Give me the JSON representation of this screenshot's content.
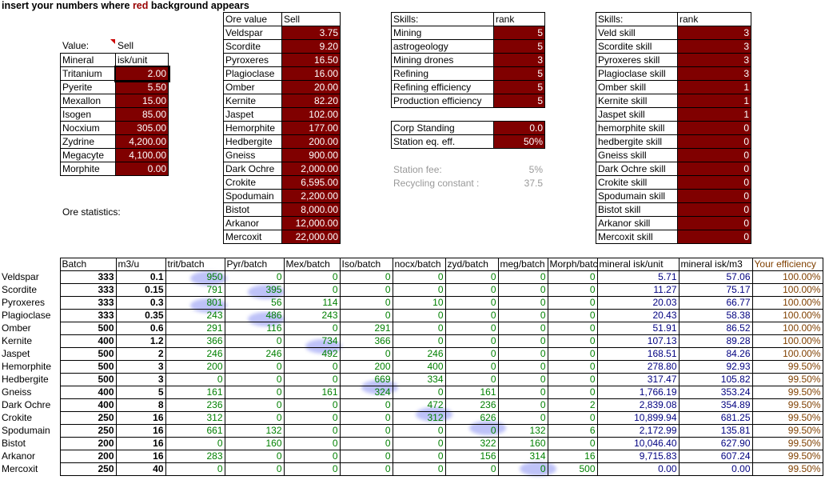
{
  "instruction": {
    "prefix": "insert your numbers where ",
    "red_word": "red",
    "suffix": " background appears"
  },
  "mineral_table": {
    "header_value": "Value:",
    "header_sell": "Sell",
    "col_mineral": "Mineral",
    "col_isk": "isk/unit",
    "rows": [
      {
        "name": "Tritanium",
        "value": "2.00"
      },
      {
        "name": "Pyerite",
        "value": "5.50"
      },
      {
        "name": "Mexallon",
        "value": "15.00"
      },
      {
        "name": "Isogen",
        "value": "85.00"
      },
      {
        "name": "Nocxium",
        "value": "305.00"
      },
      {
        "name": "Zydrine",
        "value": "4,200.00"
      },
      {
        "name": "Megacyte",
        "value": "4,100.00"
      },
      {
        "name": "Morphite",
        "value": "0.00"
      }
    ]
  },
  "ore_stats_label": "Ore statistics:",
  "ore_value_table": {
    "col_ore": "Ore value",
    "col_sell": "Sell",
    "rows": [
      {
        "name": "Veldspar",
        "value": "3.75"
      },
      {
        "name": "Scordite",
        "value": "9.20"
      },
      {
        "name": "Pyroxeres",
        "value": "16.50"
      },
      {
        "name": "Plagioclase",
        "value": "16.00"
      },
      {
        "name": "Omber",
        "value": "20.00"
      },
      {
        "name": "Kernite",
        "value": "82.20"
      },
      {
        "name": "Jaspet",
        "value": "102.00"
      },
      {
        "name": "Hemorphite",
        "value": "177.00"
      },
      {
        "name": "Hedbergite",
        "value": "200.00"
      },
      {
        "name": "Gneiss",
        "value": "900.00"
      },
      {
        "name": "Dark Ochre",
        "value": "2,000.00"
      },
      {
        "name": "Crokite",
        "value": "6,595.00"
      },
      {
        "name": "Spodumain",
        "value": "2,200.00"
      },
      {
        "name": "Bistot",
        "value": "8,000.00"
      },
      {
        "name": "Arkanor",
        "value": "12,000.00"
      },
      {
        "name": "Mercoxit",
        "value": "22,000.00"
      }
    ]
  },
  "skills_table": {
    "col_skill": "Skills:",
    "col_rank": "rank",
    "rows": [
      {
        "name": "Mining",
        "rank": "5"
      },
      {
        "name": "astrogeology",
        "rank": "5"
      },
      {
        "name": "Mining drones",
        "rank": "3"
      },
      {
        "name": "Refining",
        "rank": "5"
      },
      {
        "name": "Refining efficiency",
        "rank": "5"
      },
      {
        "name": "Production efficiency",
        "rank": "5"
      }
    ]
  },
  "standing_table": {
    "rows": [
      {
        "name": "Corp Standing",
        "value": "0.0"
      },
      {
        "name": "Station eq. eff.",
        "value": "50%"
      }
    ]
  },
  "station_info": {
    "fee_label": "Station fee:",
    "fee_value": "5%",
    "recycling_label": "Recycling constant :",
    "recycling_value": "37.5"
  },
  "ore_skills_table": {
    "col_skill": "Skills:",
    "col_rank": "rank",
    "rows": [
      {
        "name": "Veld skill",
        "rank": "3"
      },
      {
        "name": "Scordite skill",
        "rank": "3"
      },
      {
        "name": "Pyroxeres skill",
        "rank": "3"
      },
      {
        "name": "Plagioclase skill",
        "rank": "3"
      },
      {
        "name": "Omber skill",
        "rank": "1"
      },
      {
        "name": "Kernite skill",
        "rank": "1"
      },
      {
        "name": "Jaspet skill",
        "rank": "1"
      },
      {
        "name": "hemorphite skill",
        "rank": "0"
      },
      {
        "name": "hedbergite skill",
        "rank": "0"
      },
      {
        "name": "Gneiss skill",
        "rank": "0"
      },
      {
        "name": "Dark Ochre skill",
        "rank": "0"
      },
      {
        "name": "Crokite skill",
        "rank": "0"
      },
      {
        "name": "Spodumain skill",
        "rank": "0"
      },
      {
        "name": "Bistot skill",
        "rank": "0"
      },
      {
        "name": "Arkanor skill",
        "rank": "0"
      },
      {
        "name": "Mercoxit skill",
        "rank": "0"
      }
    ]
  },
  "batch_table": {
    "headers": [
      "Batch",
      "m3/u",
      "trit/batch",
      "Pyr/batch",
      "Mex/batch",
      "Iso/batch",
      "nocx/batch",
      "zyd/batch",
      "meg/batch",
      "Morph/batch",
      "mineral isk/unit",
      "mineral isk/m3",
      "Your efficiency"
    ],
    "rows": [
      [
        "Veldspar",
        "333",
        "0.1",
        "950",
        "0",
        "0",
        "0",
        "0",
        "0",
        "0",
        "0",
        "5.71",
        "57.06",
        "100.00%"
      ],
      [
        "Scordite",
        "333",
        "0.15",
        "791",
        "395",
        "0",
        "0",
        "0",
        "0",
        "0",
        "0",
        "11.27",
        "75.17",
        "100.00%"
      ],
      [
        "Pyroxeres",
        "333",
        "0.3",
        "801",
        "56",
        "114",
        "0",
        "10",
        "0",
        "0",
        "0",
        "20.03",
        "66.77",
        "100.00%"
      ],
      [
        "Plagioclase",
        "333",
        "0.35",
        "243",
        "486",
        "243",
        "0",
        "0",
        "0",
        "0",
        "0",
        "20.43",
        "58.38",
        "100.00%"
      ],
      [
        "Omber",
        "500",
        "0.6",
        "291",
        "116",
        "0",
        "291",
        "0",
        "0",
        "0",
        "0",
        "51.91",
        "86.52",
        "100.00%"
      ],
      [
        "Kernite",
        "400",
        "1.2",
        "366",
        "0",
        "734",
        "366",
        "0",
        "0",
        "0",
        "0",
        "107.13",
        "89.28",
        "100.00%"
      ],
      [
        "Jaspet",
        "500",
        "2",
        "246",
        "246",
        "492",
        "0",
        "246",
        "0",
        "0",
        "0",
        "168.51",
        "84.26",
        "100.00%"
      ],
      [
        "Hemorphite",
        "500",
        "3",
        "200",
        "0",
        "0",
        "200",
        "400",
        "0",
        "0",
        "0",
        "278.80",
        "92.93",
        "99.50%"
      ],
      [
        "Hedbergite",
        "500",
        "3",
        "0",
        "0",
        "0",
        "669",
        "334",
        "0",
        "0",
        "0",
        "317.47",
        "105.82",
        "99.50%"
      ],
      [
        "Gneiss",
        "400",
        "5",
        "161",
        "0",
        "161",
        "324",
        "0",
        "161",
        "0",
        "0",
        "1,766.19",
        "353.24",
        "99.50%"
      ],
      [
        "Dark Ochre",
        "400",
        "8",
        "236",
        "0",
        "0",
        "0",
        "472",
        "236",
        "0",
        "2",
        "2,839.08",
        "354.89",
        "99.50%"
      ],
      [
        "Crokite",
        "250",
        "16",
        "312",
        "0",
        "0",
        "0",
        "312",
        "626",
        "0",
        "0",
        "10,899.94",
        "681.25",
        "99.50%"
      ],
      [
        "Spodumain",
        "250",
        "16",
        "661",
        "132",
        "0",
        "0",
        "0",
        "0",
        "132",
        "6",
        "2,172.99",
        "135.81",
        "99.50%"
      ],
      [
        "Bistot",
        "200",
        "16",
        "0",
        "160",
        "0",
        "0",
        "0",
        "322",
        "160",
        "0",
        "10,046.40",
        "627.90",
        "99.50%"
      ],
      [
        "Arkanor",
        "200",
        "16",
        "283",
        "0",
        "0",
        "0",
        "0",
        "156",
        "314",
        "16",
        "9,715.83",
        "607.24",
        "99.50%"
      ],
      [
        "Mercoxit",
        "250",
        "40",
        "0",
        "0",
        "0",
        "0",
        "0",
        "0",
        "0",
        "500",
        "0.00",
        "0.00",
        "99.50%"
      ]
    ]
  },
  "colors": {
    "red_cell": "#800000",
    "green_text": "#008000",
    "blue_text": "#000080",
    "brown_text": "#804000",
    "highlight": "#6e78f0"
  }
}
